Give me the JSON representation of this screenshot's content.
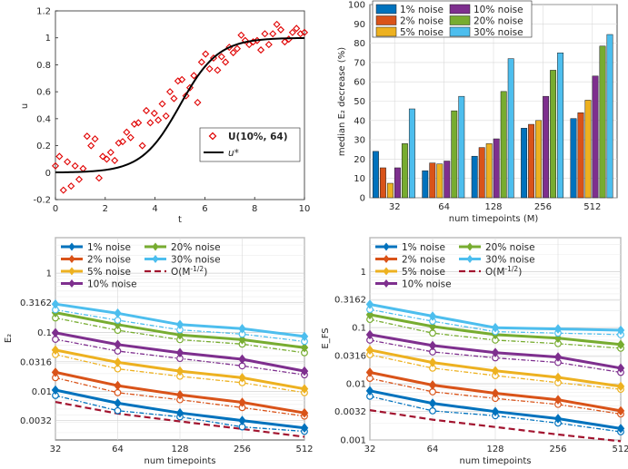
{
  "chart_data": [
    {
      "id": "a",
      "type": "scatter",
      "xlabel": "t",
      "ylabel": "u",
      "xlim": [
        0,
        10
      ],
      "ylim": [
        -0.2,
        1.2
      ],
      "xticks": [
        0,
        2,
        4,
        6,
        8,
        10
      ],
      "yticks": [
        -0.2,
        0,
        0.2,
        0.4,
        0.6,
        0.8,
        1,
        1.2
      ],
      "legend": {
        "position": "center-right",
        "noisy_label": "U(10%, 64)",
        "true_label": "u*"
      },
      "noisy_points": {
        "x": [
          0.0,
          0.16,
          0.32,
          0.48,
          0.63,
          0.79,
          0.95,
          1.11,
          1.27,
          1.43,
          1.59,
          1.75,
          1.9,
          2.06,
          2.22,
          2.38,
          2.54,
          2.7,
          2.86,
          3.02,
          3.17,
          3.33,
          3.49,
          3.65,
          3.81,
          3.97,
          4.13,
          4.29,
          4.44,
          4.6,
          4.76,
          4.92,
          5.08,
          5.24,
          5.4,
          5.56,
          5.71,
          5.87,
          6.03,
          6.19,
          6.35,
          6.51,
          6.67,
          6.83,
          6.98,
          7.14,
          7.3,
          7.46,
          7.62,
          7.78,
          7.94,
          8.1,
          8.25,
          8.41,
          8.57,
          8.73,
          8.89,
          9.05,
          9.21,
          9.37,
          9.52,
          9.68,
          9.84,
          10.0
        ],
        "y": [
          0.05,
          0.12,
          -0.13,
          0.08,
          -0.1,
          0.05,
          -0.05,
          0.03,
          0.27,
          0.2,
          0.25,
          -0.04,
          0.12,
          0.1,
          0.15,
          0.09,
          0.22,
          0.23,
          0.3,
          0.26,
          0.36,
          0.37,
          0.2,
          0.46,
          0.37,
          0.44,
          0.39,
          0.51,
          0.42,
          0.6,
          0.55,
          0.68,
          0.69,
          0.57,
          0.63,
          0.72,
          0.52,
          0.82,
          0.88,
          0.77,
          0.85,
          0.76,
          0.86,
          0.82,
          0.93,
          0.89,
          0.92,
          1.02,
          0.98,
          0.95,
          0.97,
          0.98,
          0.91,
          1.03,
          0.95,
          1.03,
          1.1,
          1.06,
          0.97,
          0.99,
          1.04,
          1.07,
          1.03,
          1.04
        ]
      },
      "true_curve": "logistic with midpoint t = 5"
    },
    {
      "id": "b",
      "type": "bar",
      "xlabel": "num timepoints (M)",
      "ylabel": "median E₂ decrease (%)",
      "ylim": [
        0,
        100
      ],
      "yticks": [
        0,
        10,
        20,
        30,
        40,
        50,
        60,
        70,
        80,
        90,
        100
      ],
      "categories": [
        "32",
        "64",
        "128",
        "256",
        "512"
      ],
      "legend_position": "top",
      "series": [
        {
          "name": "1% noise",
          "color": "#0072BD",
          "values": [
            24,
            14,
            21.5,
            36,
            41
          ]
        },
        {
          "name": "2% noise",
          "color": "#D95319",
          "values": [
            15.5,
            18,
            26,
            38,
            44
          ]
        },
        {
          "name": "5% noise",
          "color": "#EDB120",
          "values": [
            7.5,
            17.5,
            28,
            40,
            50.5
          ]
        },
        {
          "name": "10% noise",
          "color": "#7E2F8E",
          "values": [
            15.5,
            19,
            30.5,
            52.5,
            63
          ]
        },
        {
          "name": "20% noise",
          "color": "#77AC30",
          "values": [
            28,
            45,
            55,
            66,
            78.5
          ]
        },
        {
          "name": "30% noise",
          "color": "#4DBEEE",
          "values": [
            46,
            52.5,
            72,
            75,
            84.5
          ]
        }
      ]
    },
    {
      "id": "c",
      "type": "line",
      "scale": "log-log",
      "xlabel": "num timepoints",
      "ylabel": "E₂",
      "x": [
        32,
        64,
        128,
        256,
        512
      ],
      "xlim": [
        32,
        512
      ],
      "ylim": [
        0.0015,
        4
      ],
      "ytick_labels": [
        "0.0032",
        "0.01",
        "0.0316",
        "0.1",
        "0.3162",
        "1"
      ],
      "ytick_values": [
        0.0032,
        0.01,
        0.0316,
        0.1,
        0.3162,
        1
      ],
      "legend_position": "top-left",
      "reference": {
        "name": "O(M^{-1/2})",
        "label_main": "O(M",
        "label_sup": "-1/2",
        "label_end": ")",
        "color": "#A2142F",
        "values": [
          0.0066,
          0.0042,
          0.0031,
          0.0023,
          0.0017
        ]
      },
      "series": [
        {
          "name": "1% noise",
          "color": "#0072BD",
          "solid": [
            0.0105,
            0.0063,
            0.0043,
            0.0032,
            0.0024
          ],
          "dashed": [
            0.0085,
            0.0047,
            0.0037,
            0.0025,
            0.0021
          ]
        },
        {
          "name": "2% noise",
          "color": "#D95319",
          "solid": [
            0.021,
            0.0125,
            0.0087,
            0.0065,
            0.0043
          ],
          "dashed": [
            0.017,
            0.0095,
            0.0072,
            0.0053,
            0.0038
          ]
        },
        {
          "name": "5% noise",
          "color": "#EDB120",
          "solid": [
            0.05,
            0.031,
            0.022,
            0.017,
            0.011
          ],
          "dashed": [
            0.042,
            0.024,
            0.018,
            0.014,
            0.0095
          ]
        },
        {
          "name": "10% noise",
          "color": "#7E2F8E",
          "solid": [
            0.098,
            0.062,
            0.045,
            0.035,
            0.022
          ],
          "dashed": [
            0.076,
            0.048,
            0.036,
            0.027,
            0.019
          ]
        },
        {
          "name": "20% noise",
          "color": "#77AC30",
          "solid": [
            0.215,
            0.135,
            0.09,
            0.075,
            0.055
          ],
          "dashed": [
            0.175,
            0.108,
            0.075,
            0.063,
            0.045
          ]
        },
        {
          "name": "30% noise",
          "color": "#4DBEEE",
          "solid": [
            0.3,
            0.21,
            0.135,
            0.115,
            0.085
          ],
          "dashed": [
            0.24,
            0.16,
            0.11,
            0.093,
            0.07
          ]
        }
      ]
    },
    {
      "id": "d",
      "type": "line",
      "scale": "log-log",
      "xlabel": "num timepoints",
      "ylabel": "E_FS",
      "x": [
        32,
        64,
        128,
        256,
        512
      ],
      "xlim": [
        32,
        512
      ],
      "ylim": [
        0.001,
        4
      ],
      "ytick_labels": [
        "0.001",
        "0.0032",
        "0.01",
        "0.0316",
        "0.1",
        "0.3162",
        "1"
      ],
      "ytick_values": [
        0.001,
        0.0032,
        0.01,
        0.0316,
        0.1,
        0.3162,
        1
      ],
      "legend_position": "top-left",
      "reference": {
        "name": "O(M^{-1/2})",
        "label_main": "O(M",
        "label_sup": "-1/2",
        "label_end": ")",
        "color": "#A2142F",
        "values": [
          0.0034,
          0.0023,
          0.0017,
          0.00125,
          0.00095
        ]
      },
      "series": [
        {
          "name": "1% noise",
          "color": "#0072BD",
          "solid": [
            0.0075,
            0.0045,
            0.0032,
            0.0024,
            0.0016
          ],
          "dashed": [
            0.006,
            0.0033,
            0.0027,
            0.002,
            0.0014
          ]
        },
        {
          "name": "2% noise",
          "color": "#D95319",
          "solid": [
            0.016,
            0.0095,
            0.0068,
            0.0052,
            0.0033
          ],
          "dashed": [
            0.0125,
            0.0072,
            0.0055,
            0.0043,
            0.0029
          ]
        },
        {
          "name": "5% noise",
          "color": "#EDB120",
          "solid": [
            0.04,
            0.024,
            0.017,
            0.013,
            0.009
          ],
          "dashed": [
            0.033,
            0.019,
            0.014,
            0.0105,
            0.008
          ]
        },
        {
          "name": "10% noise",
          "color": "#7E2F8E",
          "solid": [
            0.075,
            0.048,
            0.036,
            0.03,
            0.019
          ],
          "dashed": [
            0.06,
            0.037,
            0.029,
            0.024,
            0.016
          ]
        },
        {
          "name": "20% noise",
          "color": "#77AC30",
          "solid": [
            0.17,
            0.105,
            0.075,
            0.065,
            0.05
          ],
          "dashed": [
            0.14,
            0.08,
            0.06,
            0.052,
            0.043
          ]
        },
        {
          "name": "30% noise",
          "color": "#4DBEEE",
          "solid": [
            0.26,
            0.16,
            0.1,
            0.095,
            0.09
          ],
          "dashed": [
            0.21,
            0.13,
            0.085,
            0.08,
            0.075
          ]
        }
      ]
    }
  ]
}
